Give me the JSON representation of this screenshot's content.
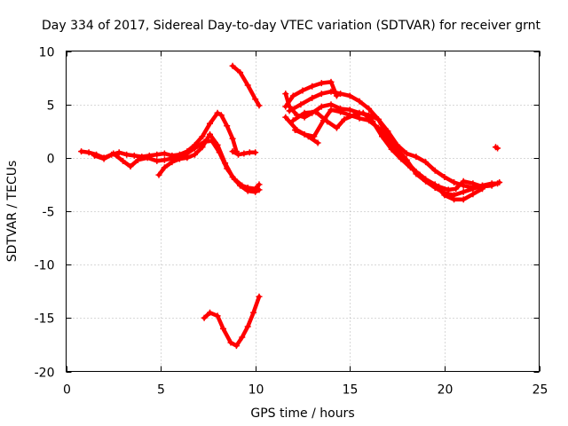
{
  "chart_data": {
    "type": "scatter",
    "title": "Day 334 of 2017, Sidereal Day-to-day VTEC variation (SDTVAR) for receiver grnt",
    "xlabel": "GPS time / hours",
    "ylabel": "SDTVAR / TECUs",
    "xlim": [
      0,
      25
    ],
    "ylim": [
      -20,
      10
    ],
    "xticks": [
      0,
      5,
      10,
      15,
      20,
      25
    ],
    "yticks": [
      -20,
      -15,
      -10,
      -5,
      0,
      5,
      10
    ],
    "grid": true,
    "marker": "plus",
    "color": "#ff0000",
    "series": [
      {
        "name": "track-1",
        "points": [
          [
            0.8,
            0.6
          ],
          [
            1.2,
            0.5
          ],
          [
            1.6,
            0.3
          ],
          [
            2.0,
            0.0
          ],
          [
            2.4,
            0.3
          ],
          [
            2.8,
            0.5
          ],
          [
            3.2,
            0.3
          ],
          [
            3.6,
            0.2
          ],
          [
            4.0,
            0.1
          ],
          [
            4.4,
            0.2
          ],
          [
            4.8,
            0.3
          ],
          [
            5.2,
            0.4
          ],
          [
            5.6,
            0.2
          ],
          [
            6.0,
            0.3
          ],
          [
            6.4,
            0.6
          ],
          [
            6.8,
            1.2
          ],
          [
            7.2,
            2.0
          ],
          [
            7.6,
            3.2
          ],
          [
            8.0,
            4.2
          ],
          [
            8.2,
            4.0
          ],
          [
            8.5,
            3.0
          ],
          [
            8.8,
            1.8
          ],
          [
            9.0,
            0.6
          ]
        ]
      },
      {
        "name": "track-2",
        "points": [
          [
            1.5,
            0.2
          ],
          [
            2.0,
            -0.1
          ],
          [
            2.5,
            0.4
          ],
          [
            3.0,
            -0.3
          ],
          [
            3.4,
            -0.8
          ],
          [
            3.8,
            -0.2
          ],
          [
            4.3,
            0.0
          ],
          [
            4.8,
            -0.3
          ],
          [
            5.2,
            -0.2
          ],
          [
            5.8,
            0.0
          ],
          [
            6.3,
            0.3
          ],
          [
            6.8,
            0.9
          ],
          [
            7.3,
            1.5
          ],
          [
            7.7,
            1.6
          ],
          [
            8.1,
            0.5
          ],
          [
            8.5,
            -1.0
          ],
          [
            8.9,
            -2.0
          ],
          [
            9.3,
            -2.6
          ],
          [
            9.6,
            -2.8
          ],
          [
            10.0,
            -2.9
          ],
          [
            10.2,
            -2.5
          ]
        ]
      },
      {
        "name": "track-3",
        "points": [
          [
            4.9,
            -1.6
          ],
          [
            5.2,
            -0.9
          ],
          [
            5.6,
            -0.4
          ],
          [
            6.0,
            -0.1
          ],
          [
            6.4,
            0.0
          ],
          [
            6.8,
            0.3
          ],
          [
            7.2,
            1.0
          ],
          [
            7.6,
            2.2
          ],
          [
            8.0,
            1.2
          ],
          [
            8.4,
            -0.5
          ],
          [
            8.8,
            -1.8
          ],
          [
            9.2,
            -2.6
          ],
          [
            9.6,
            -3.1
          ],
          [
            10.0,
            -3.2
          ],
          [
            10.2,
            -3.0
          ]
        ]
      },
      {
        "name": "track-4",
        "points": [
          [
            8.8,
            0.6
          ],
          [
            9.1,
            0.3
          ],
          [
            9.4,
            0.4
          ],
          [
            9.7,
            0.5
          ],
          [
            10.0,
            0.5
          ]
        ]
      },
      {
        "name": "track-5",
        "points": [
          [
            8.8,
            8.6
          ],
          [
            9.2,
            8.0
          ],
          [
            9.6,
            6.8
          ],
          [
            10.0,
            5.5
          ],
          [
            10.2,
            4.9
          ]
        ]
      },
      {
        "name": "track-6",
        "points": [
          [
            7.3,
            -15.0
          ],
          [
            7.6,
            -14.5
          ],
          [
            8.0,
            -14.8
          ],
          [
            8.3,
            -16.0
          ],
          [
            8.7,
            -17.3
          ],
          [
            9.0,
            -17.6
          ],
          [
            9.3,
            -16.8
          ],
          [
            9.6,
            -15.8
          ],
          [
            9.9,
            -14.5
          ],
          [
            10.2,
            -13.0
          ]
        ]
      },
      {
        "name": "track-7",
        "points": [
          [
            11.6,
            6.0
          ],
          [
            11.8,
            4.8
          ],
          [
            12.2,
            4.0
          ],
          [
            12.6,
            3.8
          ],
          [
            13.0,
            4.2
          ],
          [
            13.5,
            4.8
          ],
          [
            14.0,
            5.0
          ],
          [
            14.5,
            4.6
          ],
          [
            15.0,
            4.5
          ],
          [
            15.5,
            4.2
          ],
          [
            16.0,
            4.0
          ],
          [
            16.5,
            3.6
          ],
          [
            17.0,
            2.0
          ],
          [
            17.5,
            0.8
          ],
          [
            18.0,
            -0.2
          ],
          [
            18.5,
            -1.5
          ],
          [
            19.0,
            -2.2
          ],
          [
            19.5,
            -2.8
          ],
          [
            20.0,
            -3.3
          ],
          [
            20.5,
            -3.5
          ],
          [
            21.0,
            -3.2
          ],
          [
            21.5,
            -2.9
          ],
          [
            22.0,
            -2.6
          ],
          [
            22.5,
            -2.4
          ],
          [
            22.8,
            -2.4
          ]
        ]
      },
      {
        "name": "track-8",
        "points": [
          [
            11.6,
            4.8
          ],
          [
            12.0,
            5.8
          ],
          [
            12.5,
            6.3
          ],
          [
            13.0,
            6.7
          ],
          [
            13.5,
            7.0
          ],
          [
            14.0,
            7.1
          ],
          [
            14.3,
            5.8
          ]
        ]
      },
      {
        "name": "track-9",
        "points": [
          [
            11.6,
            3.8
          ],
          [
            12.2,
            2.6
          ],
          [
            12.8,
            2.0
          ],
          [
            13.3,
            1.4
          ]
        ]
      },
      {
        "name": "track-10",
        "points": [
          [
            11.8,
            4.4
          ],
          [
            12.4,
            5.0
          ],
          [
            13.0,
            5.6
          ],
          [
            13.5,
            6.0
          ],
          [
            14.0,
            6.2
          ],
          [
            14.5,
            6.0
          ],
          [
            15.0,
            5.8
          ],
          [
            15.5,
            5.3
          ],
          [
            16.0,
            4.6
          ],
          [
            16.5,
            3.6
          ],
          [
            17.0,
            2.5
          ],
          [
            17.5,
            1.2
          ],
          [
            18.0,
            0.4
          ],
          [
            18.5,
            0.1
          ],
          [
            19.0,
            -0.4
          ],
          [
            19.5,
            -1.2
          ],
          [
            20.0,
            -1.8
          ],
          [
            20.5,
            -2.3
          ],
          [
            21.0,
            -2.6
          ],
          [
            21.5,
            -2.8
          ],
          [
            22.0,
            -2.6
          ]
        ]
      },
      {
        "name": "track-11",
        "points": [
          [
            12.0,
            3.5
          ],
          [
            12.6,
            4.2
          ],
          [
            13.2,
            4.3
          ],
          [
            13.8,
            3.4
          ],
          [
            14.3,
            2.8
          ],
          [
            14.7,
            3.6
          ],
          [
            15.2,
            4.0
          ],
          [
            15.7,
            4.2
          ],
          [
            16.2,
            3.4
          ],
          [
            16.7,
            2.0
          ],
          [
            17.2,
            0.8
          ],
          [
            17.7,
            -0.1
          ],
          [
            18.2,
            -0.9
          ],
          [
            18.7,
            -1.6
          ],
          [
            19.2,
            -2.3
          ],
          [
            19.7,
            -2.7
          ],
          [
            20.2,
            -3.0
          ],
          [
            20.6,
            -2.9
          ],
          [
            21.0,
            -2.2
          ],
          [
            21.5,
            -2.4
          ],
          [
            22.0,
            -2.7
          ],
          [
            22.5,
            -2.6
          ],
          [
            22.9,
            -2.3
          ]
        ]
      },
      {
        "name": "track-12",
        "points": [
          [
            12.1,
            2.6
          ],
          [
            12.6,
            2.2
          ],
          [
            13.1,
            2.0
          ],
          [
            13.6,
            3.5
          ],
          [
            14.0,
            4.5
          ],
          [
            14.5,
            4.3
          ],
          [
            15.0,
            4.0
          ],
          [
            15.5,
            3.7
          ],
          [
            16.0,
            3.5
          ],
          [
            16.5,
            2.8
          ],
          [
            17.0,
            1.7
          ],
          [
            17.5,
            0.6
          ],
          [
            18.0,
            -0.4
          ],
          [
            18.5,
            -1.3
          ],
          [
            19.0,
            -2.0
          ],
          [
            19.5,
            -2.5
          ],
          [
            20.0,
            -3.5
          ],
          [
            20.5,
            -3.9
          ],
          [
            21.0,
            -3.9
          ],
          [
            21.5,
            -3.4
          ],
          [
            22.0,
            -2.9
          ]
        ]
      },
      {
        "name": "track-13",
        "points": [
          [
            22.7,
            1.0
          ],
          [
            22.8,
            0.9
          ]
        ]
      }
    ]
  }
}
